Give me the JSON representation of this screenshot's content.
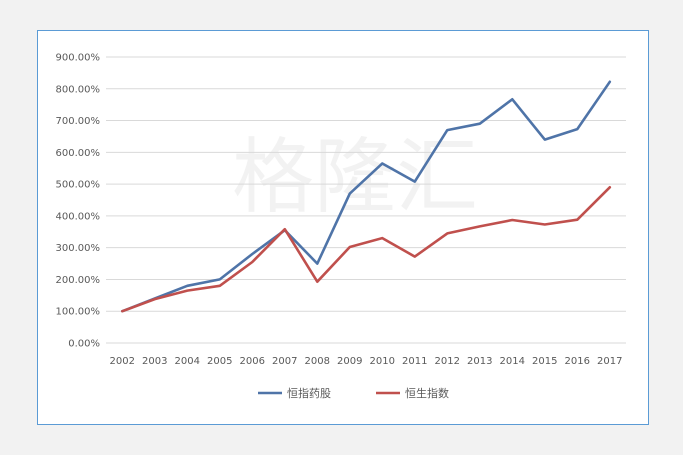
{
  "chart_data": {
    "type": "line",
    "title": "",
    "xlabel": "",
    "ylabel": "",
    "categories": [
      "2002",
      "2003",
      "2004",
      "2005",
      "2006",
      "2007",
      "2008",
      "2009",
      "2010",
      "2011",
      "2012",
      "2013",
      "2014",
      "2015",
      "2016",
      "2017"
    ],
    "ylim": [
      0,
      900
    ],
    "ytick_labels": [
      "0.00%",
      "100.00%",
      "200.00%",
      "300.00%",
      "400.00%",
      "500.00%",
      "600.00%",
      "700.00%",
      "800.00%",
      "900.00%"
    ],
    "grid": true,
    "legend_position": "bottom",
    "series": [
      {
        "name": "恒指药股",
        "color": "#4f74a8",
        "values": [
          100,
          140,
          180,
          200,
          280,
          355,
          250,
          470,
          565,
          508,
          670,
          690,
          767,
          640,
          673,
          822
        ]
      },
      {
        "name": "恒生指数",
        "color": "#c0504d",
        "values": [
          100,
          138,
          165,
          180,
          255,
          358,
          193,
          302,
          330,
          272,
          345,
          367,
          387,
          373,
          388,
          490
        ]
      }
    ]
  },
  "watermark": "格隆汇"
}
